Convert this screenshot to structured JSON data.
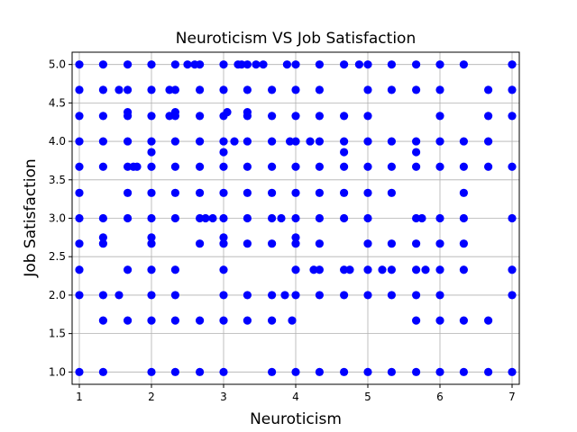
{
  "chart_data": {
    "type": "scatter",
    "title": "Neuroticism VS Job Satisfaction",
    "xlabel": "Neuroticism",
    "ylabel": "Job Satisfaction",
    "xlim": [
      0.9,
      7.1
    ],
    "ylim": [
      0.84,
      5.16
    ],
    "xticks": [
      1,
      2,
      3,
      4,
      5,
      6,
      7
    ],
    "yticks": [
      1.0,
      1.5,
      2.0,
      2.5,
      3.0,
      3.5,
      4.0,
      4.5,
      5.0
    ],
    "grid": true,
    "marker_color": "#0000ff",
    "points": [
      [
        1,
        5
      ],
      [
        1,
        4.67
      ],
      [
        1,
        4.33
      ],
      [
        1,
        4
      ],
      [
        1,
        3.67
      ],
      [
        1,
        3.33
      ],
      [
        1,
        3
      ],
      [
        1,
        2.67
      ],
      [
        1,
        2.33
      ],
      [
        1,
        2
      ],
      [
        1,
        1
      ],
      [
        1.33,
        5
      ],
      [
        1.33,
        4.67
      ],
      [
        1.33,
        4.33
      ],
      [
        1.33,
        4
      ],
      [
        1.33,
        3.67
      ],
      [
        1.33,
        3
      ],
      [
        1.33,
        2.75
      ],
      [
        1.33,
        2.67
      ],
      [
        1.33,
        2
      ],
      [
        1.33,
        1.67
      ],
      [
        1.33,
        1
      ],
      [
        1.55,
        4.67
      ],
      [
        1.55,
        2
      ],
      [
        1.67,
        5
      ],
      [
        1.67,
        4.67
      ],
      [
        1.67,
        4.38
      ],
      [
        1.67,
        4.33
      ],
      [
        1.67,
        4
      ],
      [
        1.67,
        3.67
      ],
      [
        1.67,
        3.33
      ],
      [
        1.67,
        3
      ],
      [
        1.67,
        2.33
      ],
      [
        1.67,
        1.67
      ],
      [
        1.75,
        3.67
      ],
      [
        1.8,
        3.67
      ],
      [
        2,
        5
      ],
      [
        2,
        4.67
      ],
      [
        2,
        4.33
      ],
      [
        2,
        4
      ],
      [
        2,
        3.86
      ],
      [
        2,
        3.67
      ],
      [
        2,
        3.33
      ],
      [
        2,
        3
      ],
      [
        2,
        2.75
      ],
      [
        2,
        2.67
      ],
      [
        2,
        2.33
      ],
      [
        2,
        2
      ],
      [
        2,
        1.67
      ],
      [
        2,
        1
      ],
      [
        2.25,
        4.67
      ],
      [
        2.25,
        4.33
      ],
      [
        2.33,
        5
      ],
      [
        2.33,
        4.67
      ],
      [
        2.33,
        4.38
      ],
      [
        2.33,
        4.33
      ],
      [
        2.33,
        4
      ],
      [
        2.33,
        3.67
      ],
      [
        2.33,
        3.33
      ],
      [
        2.33,
        3
      ],
      [
        2.33,
        2.33
      ],
      [
        2.33,
        2
      ],
      [
        2.33,
        1.67
      ],
      [
        2.33,
        1
      ],
      [
        2.5,
        5
      ],
      [
        2.6,
        5
      ],
      [
        2.67,
        5
      ],
      [
        2.67,
        4.67
      ],
      [
        2.67,
        4.33
      ],
      [
        2.67,
        4
      ],
      [
        2.67,
        3.67
      ],
      [
        2.67,
        3.33
      ],
      [
        2.67,
        3
      ],
      [
        2.67,
        2.67
      ],
      [
        2.67,
        1.67
      ],
      [
        2.67,
        1
      ],
      [
        2.75,
        3
      ],
      [
        2.85,
        3
      ],
      [
        3,
        5
      ],
      [
        3,
        4.67
      ],
      [
        3,
        4.33
      ],
      [
        3,
        4
      ],
      [
        3,
        3.86
      ],
      [
        3,
        3.67
      ],
      [
        3,
        3.33
      ],
      [
        3,
        3
      ],
      [
        3,
        2.75
      ],
      [
        3,
        2.67
      ],
      [
        3,
        2.33
      ],
      [
        3,
        2
      ],
      [
        3,
        1.67
      ],
      [
        3,
        1
      ],
      [
        3.05,
        4.38
      ],
      [
        3.15,
        4
      ],
      [
        3.2,
        5
      ],
      [
        3.25,
        5
      ],
      [
        3.33,
        5
      ],
      [
        3.33,
        4.67
      ],
      [
        3.33,
        4.38
      ],
      [
        3.33,
        4.33
      ],
      [
        3.33,
        4
      ],
      [
        3.33,
        3.67
      ],
      [
        3.33,
        3.33
      ],
      [
        3.33,
        3
      ],
      [
        3.33,
        2.67
      ],
      [
        3.33,
        2
      ],
      [
        3.33,
        1.67
      ],
      [
        3.45,
        5
      ],
      [
        3.55,
        5
      ],
      [
        3.67,
        4.67
      ],
      [
        3.67,
        4.33
      ],
      [
        3.67,
        4
      ],
      [
        3.67,
        3.67
      ],
      [
        3.67,
        3.33
      ],
      [
        3.67,
        3
      ],
      [
        3.67,
        2.67
      ],
      [
        3.67,
        2
      ],
      [
        3.67,
        1.67
      ],
      [
        3.67,
        1
      ],
      [
        3.8,
        3
      ],
      [
        3.85,
        2
      ],
      [
        3.88,
        5
      ],
      [
        3.92,
        4
      ],
      [
        3.95,
        1.67
      ],
      [
        4,
        5
      ],
      [
        4,
        4.67
      ],
      [
        4,
        4.33
      ],
      [
        4,
        4
      ],
      [
        4,
        3.67
      ],
      [
        4,
        3.33
      ],
      [
        4,
        3
      ],
      [
        4,
        2.75
      ],
      [
        4,
        2.67
      ],
      [
        4,
        2.33
      ],
      [
        4,
        2
      ],
      [
        4,
        1
      ],
      [
        4.2,
        4
      ],
      [
        4.25,
        2.33
      ],
      [
        4.33,
        5
      ],
      [
        4.33,
        4.67
      ],
      [
        4.33,
        4.33
      ],
      [
        4.33,
        4
      ],
      [
        4.33,
        3.67
      ],
      [
        4.33,
        3.33
      ],
      [
        4.33,
        3
      ],
      [
        4.33,
        2.67
      ],
      [
        4.33,
        2.33
      ],
      [
        4.33,
        2
      ],
      [
        4.33,
        1
      ],
      [
        4.67,
        5
      ],
      [
        4.67,
        4.33
      ],
      [
        4.67,
        4
      ],
      [
        4.67,
        3.86
      ],
      [
        4.67,
        3.67
      ],
      [
        4.67,
        3.33
      ],
      [
        4.67,
        3
      ],
      [
        4.67,
        2.33
      ],
      [
        4.67,
        2
      ],
      [
        4.67,
        1
      ],
      [
        4.75,
        2.33
      ],
      [
        4.88,
        5
      ],
      [
        5,
        5
      ],
      [
        5,
        4.67
      ],
      [
        5,
        4.33
      ],
      [
        5,
        4
      ],
      [
        5,
        3.67
      ],
      [
        5,
        3.33
      ],
      [
        5,
        3
      ],
      [
        5,
        2.67
      ],
      [
        5,
        2.33
      ],
      [
        5,
        2
      ],
      [
        5,
        1
      ],
      [
        5.2,
        2.33
      ],
      [
        5.33,
        5
      ],
      [
        5.33,
        4.67
      ],
      [
        5.33,
        4
      ],
      [
        5.33,
        3.67
      ],
      [
        5.33,
        3.33
      ],
      [
        5.33,
        2.67
      ],
      [
        5.33,
        2.33
      ],
      [
        5.33,
        2
      ],
      [
        5.33,
        1
      ],
      [
        5.67,
        5
      ],
      [
        5.67,
        4.67
      ],
      [
        5.67,
        4
      ],
      [
        5.67,
        3.86
      ],
      [
        5.67,
        3.67
      ],
      [
        5.67,
        3
      ],
      [
        5.67,
        2.67
      ],
      [
        5.67,
        2.33
      ],
      [
        5.67,
        2
      ],
      [
        5.67,
        1.67
      ],
      [
        5.67,
        1
      ],
      [
        5.75,
        3
      ],
      [
        5.8,
        2.33
      ],
      [
        6,
        5
      ],
      [
        6,
        4.67
      ],
      [
        6,
        4.33
      ],
      [
        6,
        4
      ],
      [
        6,
        3.67
      ],
      [
        6,
        3
      ],
      [
        6,
        2.67
      ],
      [
        6,
        2.33
      ],
      [
        6,
        2
      ],
      [
        6,
        1.67
      ],
      [
        6,
        1
      ],
      [
        6.33,
        5
      ],
      [
        6.33,
        4
      ],
      [
        6.33,
        3.67
      ],
      [
        6.33,
        3.33
      ],
      [
        6.33,
        3
      ],
      [
        6.33,
        2.67
      ],
      [
        6.33,
        2.33
      ],
      [
        6.33,
        1.67
      ],
      [
        6.33,
        1
      ],
      [
        6.67,
        4.67
      ],
      [
        6.67,
        4.33
      ],
      [
        6.67,
        4
      ],
      [
        6.67,
        3.67
      ],
      [
        6.67,
        1.67
      ],
      [
        6.67,
        1
      ],
      [
        7,
        5
      ],
      [
        7,
        4.67
      ],
      [
        7,
        4.33
      ],
      [
        7,
        3.67
      ],
      [
        7,
        3
      ],
      [
        7,
        2.33
      ],
      [
        7,
        2
      ],
      [
        7,
        1
      ]
    ]
  }
}
